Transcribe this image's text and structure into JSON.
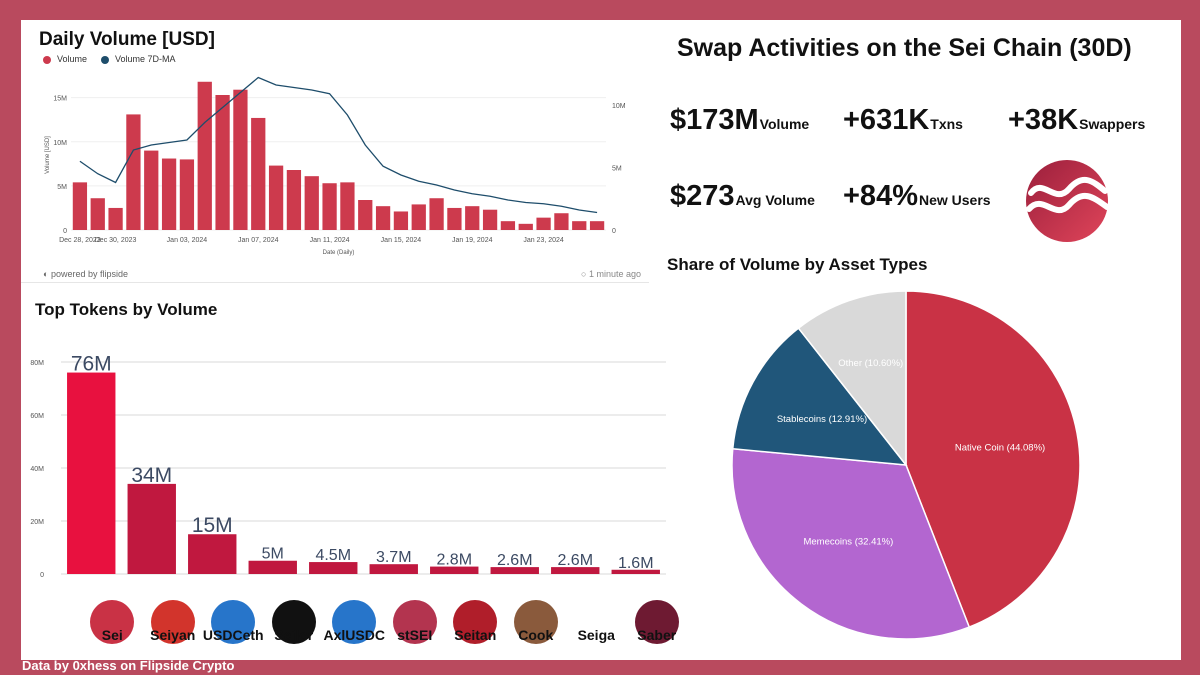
{
  "colors": {
    "frame": "#b94a5e",
    "volume_bar": "#cd3a4d",
    "ma_line": "#1e4d6b",
    "token_bar_first": "#e8113f",
    "token_bar": "#c0183f",
    "pie_native": "#c93245",
    "pie_meme": "#b366d0",
    "pie_stable": "#20567a",
    "pie_other": "#d9d9d9"
  },
  "daily_volume": {
    "title": "Daily Volume [USD]",
    "legend_volume": "Volume",
    "legend_ma": "Volume 7D-MA",
    "powered_by": "powered by flipside",
    "updated": "1 minute ago"
  },
  "swap": {
    "title": "Swap Activities on the Sei Chain (30D)",
    "stats": [
      {
        "value": "$173M",
        "label": "Volume"
      },
      {
        "value": "+631K",
        "label": "Txns"
      },
      {
        "value": "+38K",
        "label": "Swappers"
      },
      {
        "value": "$273",
        "label": "Avg Volume"
      },
      {
        "value": "+84%",
        "label": "New Users"
      }
    ]
  },
  "share": {
    "title": "Share of Volume by Asset Types"
  },
  "top_tokens": {
    "title": "Top Tokens by Volume"
  },
  "footer": "Data by 0xhess on Flipside Crypto",
  "chart_data": [
    {
      "id": "daily",
      "type": "bar",
      "title": "Daily Volume [USD]",
      "xlabel": "Date (Daily)",
      "ylabel": "Volume [USD]",
      "ylim": [
        0,
        17
      ],
      "y2lim": [
        0,
        12
      ],
      "yticks": [
        "0",
        "5M",
        "10M",
        "15M"
      ],
      "y2ticks": [
        "0",
        "5M",
        "10M"
      ],
      "xticks": [
        {
          "i": 0,
          "label": "Dec 28, 2023"
        },
        {
          "i": 2,
          "label": "Dec 30, 2023"
        },
        {
          "i": 6,
          "label": "Jan 03, 2024"
        },
        {
          "i": 10,
          "label": "Jan 07, 2024"
        },
        {
          "i": 14,
          "label": "Jan 11, 2024"
        },
        {
          "i": 18,
          "label": "Jan 15, 2024"
        },
        {
          "i": 22,
          "label": "Jan 19, 2024"
        },
        {
          "i": 26,
          "label": "Jan 23, 2024"
        }
      ],
      "series": [
        {
          "name": "Volume",
          "axis": "left",
          "values": [
            5.4,
            3.6,
            2.5,
            13.1,
            9.0,
            8.1,
            8.0,
            16.8,
            15.3,
            15.9,
            12.7,
            7.3,
            6.8,
            6.1,
            5.3,
            5.4,
            3.4,
            2.7,
            2.1,
            2.9,
            3.6,
            2.5,
            2.7,
            2.3,
            1.0,
            0.7,
            1.4,
            1.9,
            1.0,
            1.0
          ]
        },
        {
          "name": "Volume 7D-MA",
          "axis": "right",
          "values": [
            5.5,
            4.5,
            3.8,
            6.4,
            6.8,
            7.0,
            7.2,
            8.6,
            9.8,
            11.0,
            12.2,
            11.6,
            11.4,
            11.2,
            10.9,
            9.2,
            6.8,
            5.1,
            4.4,
            3.9,
            3.6,
            3.2,
            2.9,
            2.7,
            2.4,
            2.2,
            2.1,
            1.9,
            1.6,
            1.4
          ]
        }
      ]
    },
    {
      "id": "tokens",
      "type": "bar",
      "title": "Top Tokens by Volume",
      "ylim": [
        0,
        83
      ],
      "yticks": [
        "0",
        "20M",
        "40M",
        "60M",
        "80M"
      ],
      "categories": [
        "Sei",
        "Seiyan",
        "USDCeth",
        "Seilor",
        "AxlUSDC",
        "stSEI",
        "Seitan",
        "Cook",
        "Seiga",
        "Saber"
      ],
      "values": [
        76,
        34,
        15,
        5,
        4.5,
        3.7,
        2.8,
        2.6,
        2.6,
        1.6
      ],
      "labels": [
        "76M",
        "34M",
        "15M",
        "5M",
        "4.5M",
        "3.7M",
        "2.8M",
        "2.6M",
        "2.6M",
        "1.6M"
      ]
    },
    {
      "id": "share",
      "type": "pie",
      "title": "Share of Volume by Asset Types",
      "slices": [
        {
          "label": "Native Coin (44.08%)",
          "value": 44.08
        },
        {
          "label": "Memecoins (32.41%)",
          "value": 32.41
        },
        {
          "label": "Stablecoins (12.91%)",
          "value": 12.91
        },
        {
          "label": "Other (10.60%)",
          "value": 10.6
        }
      ]
    }
  ]
}
